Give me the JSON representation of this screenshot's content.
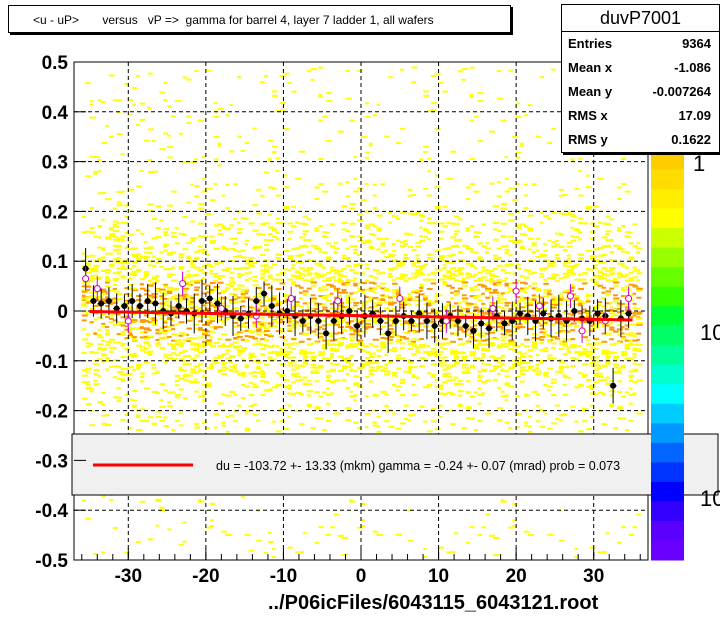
{
  "title": "<u - uP>       versus   vP =>  gamma for barrel 4, layer 7 ladder 1, all wafers",
  "stats": {
    "name": "duvP7001",
    "rows": [
      {
        "label": "Entries",
        "value": "9364"
      },
      {
        "label": "Mean x",
        "value": "-1.086"
      },
      {
        "label": "Mean y",
        "value": "-0.007264"
      },
      {
        "label": "RMS x",
        "value": "17.09"
      },
      {
        "label": "RMS y",
        "value": "0.1622"
      }
    ]
  },
  "legend": {
    "fit_text": "du = -103.72 +- 13.33 (mkm) gamma =   -0.24 +-  0.07 (mrad) prob = 0.073",
    "line_color": "#ff0000"
  },
  "footer": "../P06icFiles/6043115_6043121.root",
  "colorbar_labels": [
    "1",
    "10",
    "10"
  ],
  "chart_data": {
    "type": "scatter",
    "xlim": [
      -37,
      37
    ],
    "ylim": [
      -0.5,
      0.5
    ],
    "xticks": [
      "-30",
      "-20",
      "-10",
      "0",
      "10",
      "20",
      "30"
    ],
    "yticks": [
      "0.5",
      "0.4",
      "0.3",
      "0.2",
      "0.1",
      "0",
      "-0.1",
      "-0.2",
      "-0.3",
      "-0.4",
      "-0.5"
    ],
    "grid": true,
    "colors": {
      "heat_low": "#ffff00",
      "heat_high": "#ff9900",
      "profile": "#000000",
      "profile_alt": "#cc00cc",
      "fit": "#ff0000"
    },
    "fit_line": {
      "x": [
        -35,
        35
      ],
      "y": [
        -0.001,
        -0.018
      ]
    },
    "profile": [
      {
        "x": -35.5,
        "y": 0.085
      },
      {
        "x": -34.5,
        "y": 0.02
      },
      {
        "x": -33.5,
        "y": 0.015
      },
      {
        "x": -32.5,
        "y": 0.02
      },
      {
        "x": -31.5,
        "y": 0.005
      },
      {
        "x": -30.5,
        "y": 0.01
      },
      {
        "x": -29.5,
        "y": 0.02
      },
      {
        "x": -28.5,
        "y": 0.01
      },
      {
        "x": -27.5,
        "y": 0.02
      },
      {
        "x": -26.5,
        "y": 0.015
      },
      {
        "x": -25.5,
        "y": 0.0
      },
      {
        "x": -24.5,
        "y": -0.005
      },
      {
        "x": -23.5,
        "y": 0.01
      },
      {
        "x": -22.5,
        "y": 0.0
      },
      {
        "x": -21.5,
        "y": -0.005
      },
      {
        "x": -20.5,
        "y": 0.02
      },
      {
        "x": -19.5,
        "y": 0.025
      },
      {
        "x": -18.5,
        "y": 0.015
      },
      {
        "x": -17.5,
        "y": 0.0
      },
      {
        "x": -16.5,
        "y": -0.01
      },
      {
        "x": -15.5,
        "y": -0.015
      },
      {
        "x": -14.5,
        "y": -0.005
      },
      {
        "x": -13.5,
        "y": 0.02
      },
      {
        "x": -12.5,
        "y": 0.035
      },
      {
        "x": -11.5,
        "y": 0.01
      },
      {
        "x": -10.5,
        "y": -0.005
      },
      {
        "x": -9.5,
        "y": 0.0
      },
      {
        "x": -8.5,
        "y": -0.01
      },
      {
        "x": -7.5,
        "y": -0.02
      },
      {
        "x": -6.5,
        "y": -0.01
      },
      {
        "x": -5.5,
        "y": -0.02
      },
      {
        "x": -4.5,
        "y": -0.045
      },
      {
        "x": -3.5,
        "y": -0.02
      },
      {
        "x": -2.5,
        "y": -0.01
      },
      {
        "x": -1.5,
        "y": 0.0
      },
      {
        "x": -0.5,
        "y": -0.03
      },
      {
        "x": 0.5,
        "y": -0.01
      },
      {
        "x": 1.5,
        "y": -0.005
      },
      {
        "x": 2.5,
        "y": -0.02
      },
      {
        "x": 3.5,
        "y": -0.045
      },
      {
        "x": 4.5,
        "y": -0.02
      },
      {
        "x": 5.5,
        "y": -0.01
      },
      {
        "x": 6.5,
        "y": -0.02
      },
      {
        "x": 7.5,
        "y": -0.005
      },
      {
        "x": 8.5,
        "y": -0.02
      },
      {
        "x": 9.5,
        "y": -0.03
      },
      {
        "x": 10.5,
        "y": -0.02
      },
      {
        "x": 11.5,
        "y": -0.01
      },
      {
        "x": 12.5,
        "y": -0.02
      },
      {
        "x": 13.5,
        "y": -0.03
      },
      {
        "x": 14.5,
        "y": -0.04
      },
      {
        "x": 15.5,
        "y": -0.025
      },
      {
        "x": 16.5,
        "y": -0.035
      },
      {
        "x": 17.5,
        "y": -0.01
      },
      {
        "x": 18.5,
        "y": -0.025
      },
      {
        "x": 19.5,
        "y": -0.02
      },
      {
        "x": 20.5,
        "y": -0.005
      },
      {
        "x": 21.5,
        "y": -0.01
      },
      {
        "x": 22.5,
        "y": -0.02
      },
      {
        "x": 23.5,
        "y": -0.005
      },
      {
        "x": 24.5,
        "y": -0.015
      },
      {
        "x": 25.5,
        "y": -0.01
      },
      {
        "x": 26.5,
        "y": -0.02
      },
      {
        "x": 27.5,
        "y": 0.0
      },
      {
        "x": 28.5,
        "y": -0.015
      },
      {
        "x": 29.5,
        "y": -0.02
      },
      {
        "x": 30.5,
        "y": -0.005
      },
      {
        "x": 31.5,
        "y": -0.01
      },
      {
        "x": 32.5,
        "y": -0.15
      },
      {
        "x": 33.5,
        "y": -0.015
      },
      {
        "x": 34.5,
        "y": -0.005
      }
    ],
    "profile_alt": [
      {
        "x": -35.5,
        "y": 0.065
      },
      {
        "x": -34.0,
        "y": 0.045
      },
      {
        "x": -30.0,
        "y": -0.02
      },
      {
        "x": -23.0,
        "y": 0.055
      },
      {
        "x": -18.0,
        "y": 0.005
      },
      {
        "x": -13.5,
        "y": -0.01
      },
      {
        "x": -9.0,
        "y": 0.025
      },
      {
        "x": -3.0,
        "y": 0.02
      },
      {
        "x": 5.0,
        "y": 0.025
      },
      {
        "x": 11.0,
        "y": -0.02
      },
      {
        "x": 17.0,
        "y": 0.005
      },
      {
        "x": 20.0,
        "y": 0.04
      },
      {
        "x": 23.0,
        "y": 0.01
      },
      {
        "x": 27.0,
        "y": 0.03
      },
      {
        "x": 28.5,
        "y": -0.04
      },
      {
        "x": 31.5,
        "y": -0.02
      },
      {
        "x": 34.5,
        "y": 0.025
      }
    ],
    "heat_columns": {
      "x_from": -36,
      "x_to": 36,
      "core_rms": 0.16
    }
  }
}
